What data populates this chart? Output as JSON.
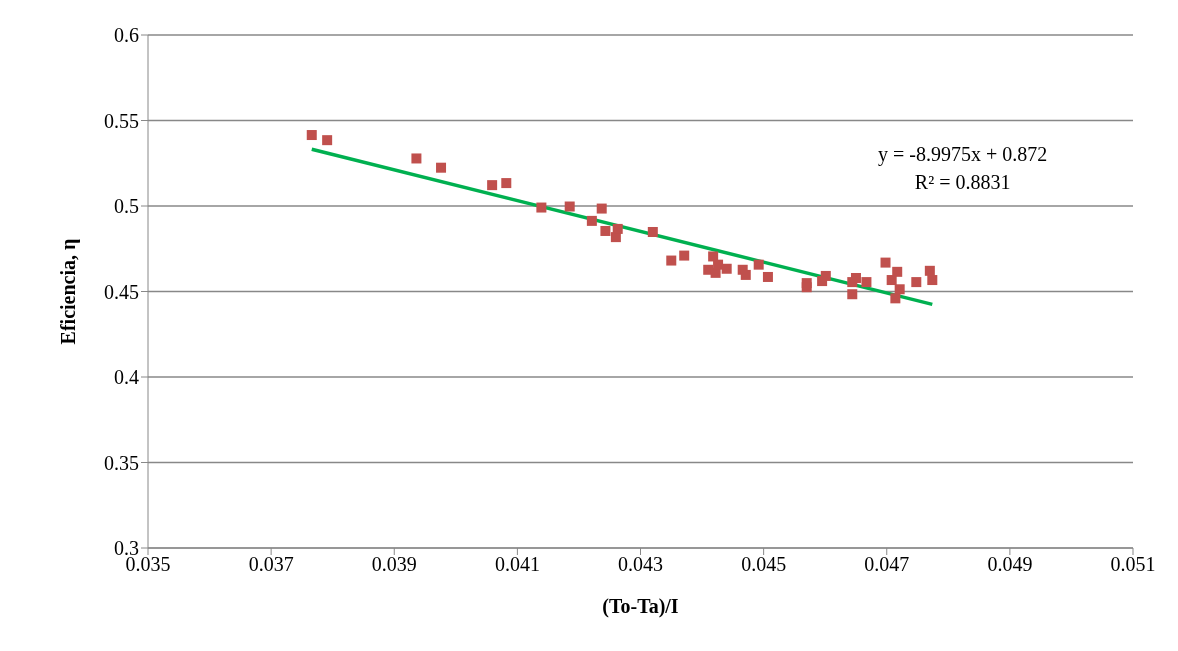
{
  "chart_data": {
    "type": "scatter",
    "xlabel": "(To-Ta)/I",
    "ylabel": "Eficiencia, η",
    "xlim": [
      0.035,
      0.051
    ],
    "xticks": [
      0.035,
      0.037,
      0.039,
      0.041,
      0.043,
      0.045,
      0.047,
      0.049,
      0.051
    ],
    "ylim": [
      0.3,
      0.6
    ],
    "yticks": [
      0.3,
      0.35,
      0.4,
      0.45,
      0.5,
      0.55,
      0.6
    ],
    "grid": "y",
    "annotations": [
      "y = -8.9975x + 0.872",
      "R² = 0.8831"
    ],
    "series": [
      {
        "marker": "square",
        "color": "#c0504d",
        "x": [
          0.03766,
          0.03791,
          0.03936,
          0.03976,
          0.04059,
          0.04082,
          0.04139,
          0.04185,
          0.04221,
          0.04237,
          0.04243,
          0.0426,
          0.04263,
          0.0432,
          0.0435,
          0.04371,
          0.0441,
          0.04418,
          0.04422,
          0.04426,
          0.0444,
          0.04466,
          0.04471,
          0.04492,
          0.04507,
          0.0457,
          0.0457,
          0.04595,
          0.04601,
          0.04644,
          0.04644,
          0.0465,
          0.04667,
          0.04698,
          0.04708,
          0.04717,
          0.04714,
          0.04721,
          0.04748,
          0.0477,
          0.04774
        ],
        "values": [
          0.5415,
          0.5385,
          0.5278,
          0.5224,
          0.5122,
          0.5134,
          0.4991,
          0.4997,
          0.4913,
          0.4985,
          0.4854,
          0.4818,
          0.4866,
          0.4848,
          0.4681,
          0.471,
          0.4627,
          0.4705,
          0.4609,
          0.4657,
          0.4633,
          0.4627,
          0.4597,
          0.4657,
          0.4585,
          0.4549,
          0.4525,
          0.4561,
          0.4591,
          0.4555,
          0.4484,
          0.4579,
          0.4555,
          0.4669,
          0.4567,
          0.4615,
          0.446,
          0.4513,
          0.4555,
          0.4621,
          0.4567
        ]
      },
      {
        "type": "line",
        "marker": "none",
        "color": "#00b050",
        "x": [
          0.03766,
          0.04774
        ],
        "values": [
          0.5332,
          0.4425
        ]
      }
    ]
  }
}
